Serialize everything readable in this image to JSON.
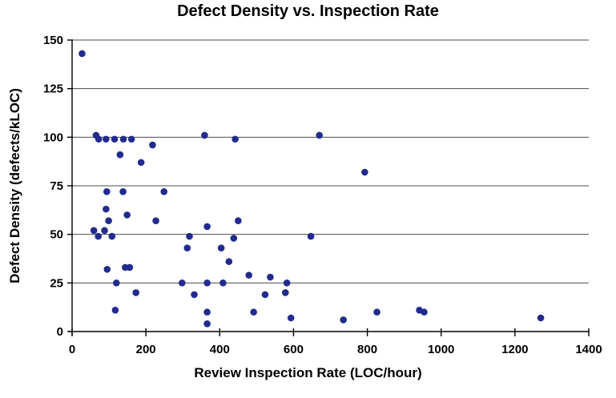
{
  "title": "Defect Density vs. Inspection Rate",
  "colors": {
    "point": "#222b8d",
    "grid": "#4d4d4d",
    "axis": "#000000",
    "background": "#ffffff",
    "text": "#000000"
  },
  "chart_data": {
    "type": "scatter",
    "title": "Defect Density vs. Inspection Rate",
    "xlabel": "Review Inspection Rate (LOC/hour)",
    "ylabel": "Defect Density (defects/kLOC)",
    "xlim": [
      0,
      1400
    ],
    "ylim": [
      0,
      150
    ],
    "xticks": [
      0,
      200,
      400,
      600,
      800,
      1000,
      1200,
      1400
    ],
    "yticks": [
      0,
      25,
      50,
      75,
      100,
      125,
      150
    ],
    "grid": "horizontal-only",
    "legend": "none",
    "marker": "filled-circle",
    "points": [
      [
        27,
        143
      ],
      [
        65,
        101
      ],
      [
        72,
        99
      ],
      [
        92,
        99
      ],
      [
        115,
        99
      ],
      [
        139,
        99
      ],
      [
        161,
        99
      ],
      [
        130,
        91
      ],
      [
        187,
        87
      ],
      [
        218,
        96
      ],
      [
        94,
        72
      ],
      [
        138,
        72
      ],
      [
        249,
        72
      ],
      [
        92,
        63
      ],
      [
        149,
        60
      ],
      [
        99,
        57
      ],
      [
        227,
        57
      ],
      [
        59,
        52
      ],
      [
        88,
        52
      ],
      [
        71,
        49
      ],
      [
        108,
        49
      ],
      [
        318,
        49
      ],
      [
        312,
        43
      ],
      [
        95,
        32
      ],
      [
        144,
        33
      ],
      [
        156,
        33
      ],
      [
        120,
        25
      ],
      [
        298,
        25
      ],
      [
        173,
        20
      ],
      [
        331,
        19
      ],
      [
        117,
        11
      ],
      [
        359,
        101
      ],
      [
        442,
        99
      ],
      [
        670,
        101
      ],
      [
        366,
        54
      ],
      [
        450,
        57
      ],
      [
        438,
        48
      ],
      [
        404,
        43
      ],
      [
        425,
        36
      ],
      [
        479,
        29
      ],
      [
        537,
        28
      ],
      [
        366,
        25
      ],
      [
        409,
        25
      ],
      [
        582,
        25
      ],
      [
        647,
        49
      ],
      [
        523,
        19
      ],
      [
        578,
        20
      ],
      [
        366,
        10
      ],
      [
        366,
        4
      ],
      [
        492,
        10
      ],
      [
        593,
        7
      ],
      [
        735,
        6
      ],
      [
        793,
        82
      ],
      [
        826,
        10
      ],
      [
        941,
        11
      ],
      [
        954,
        10
      ],
      [
        1270,
        7
      ]
    ]
  }
}
